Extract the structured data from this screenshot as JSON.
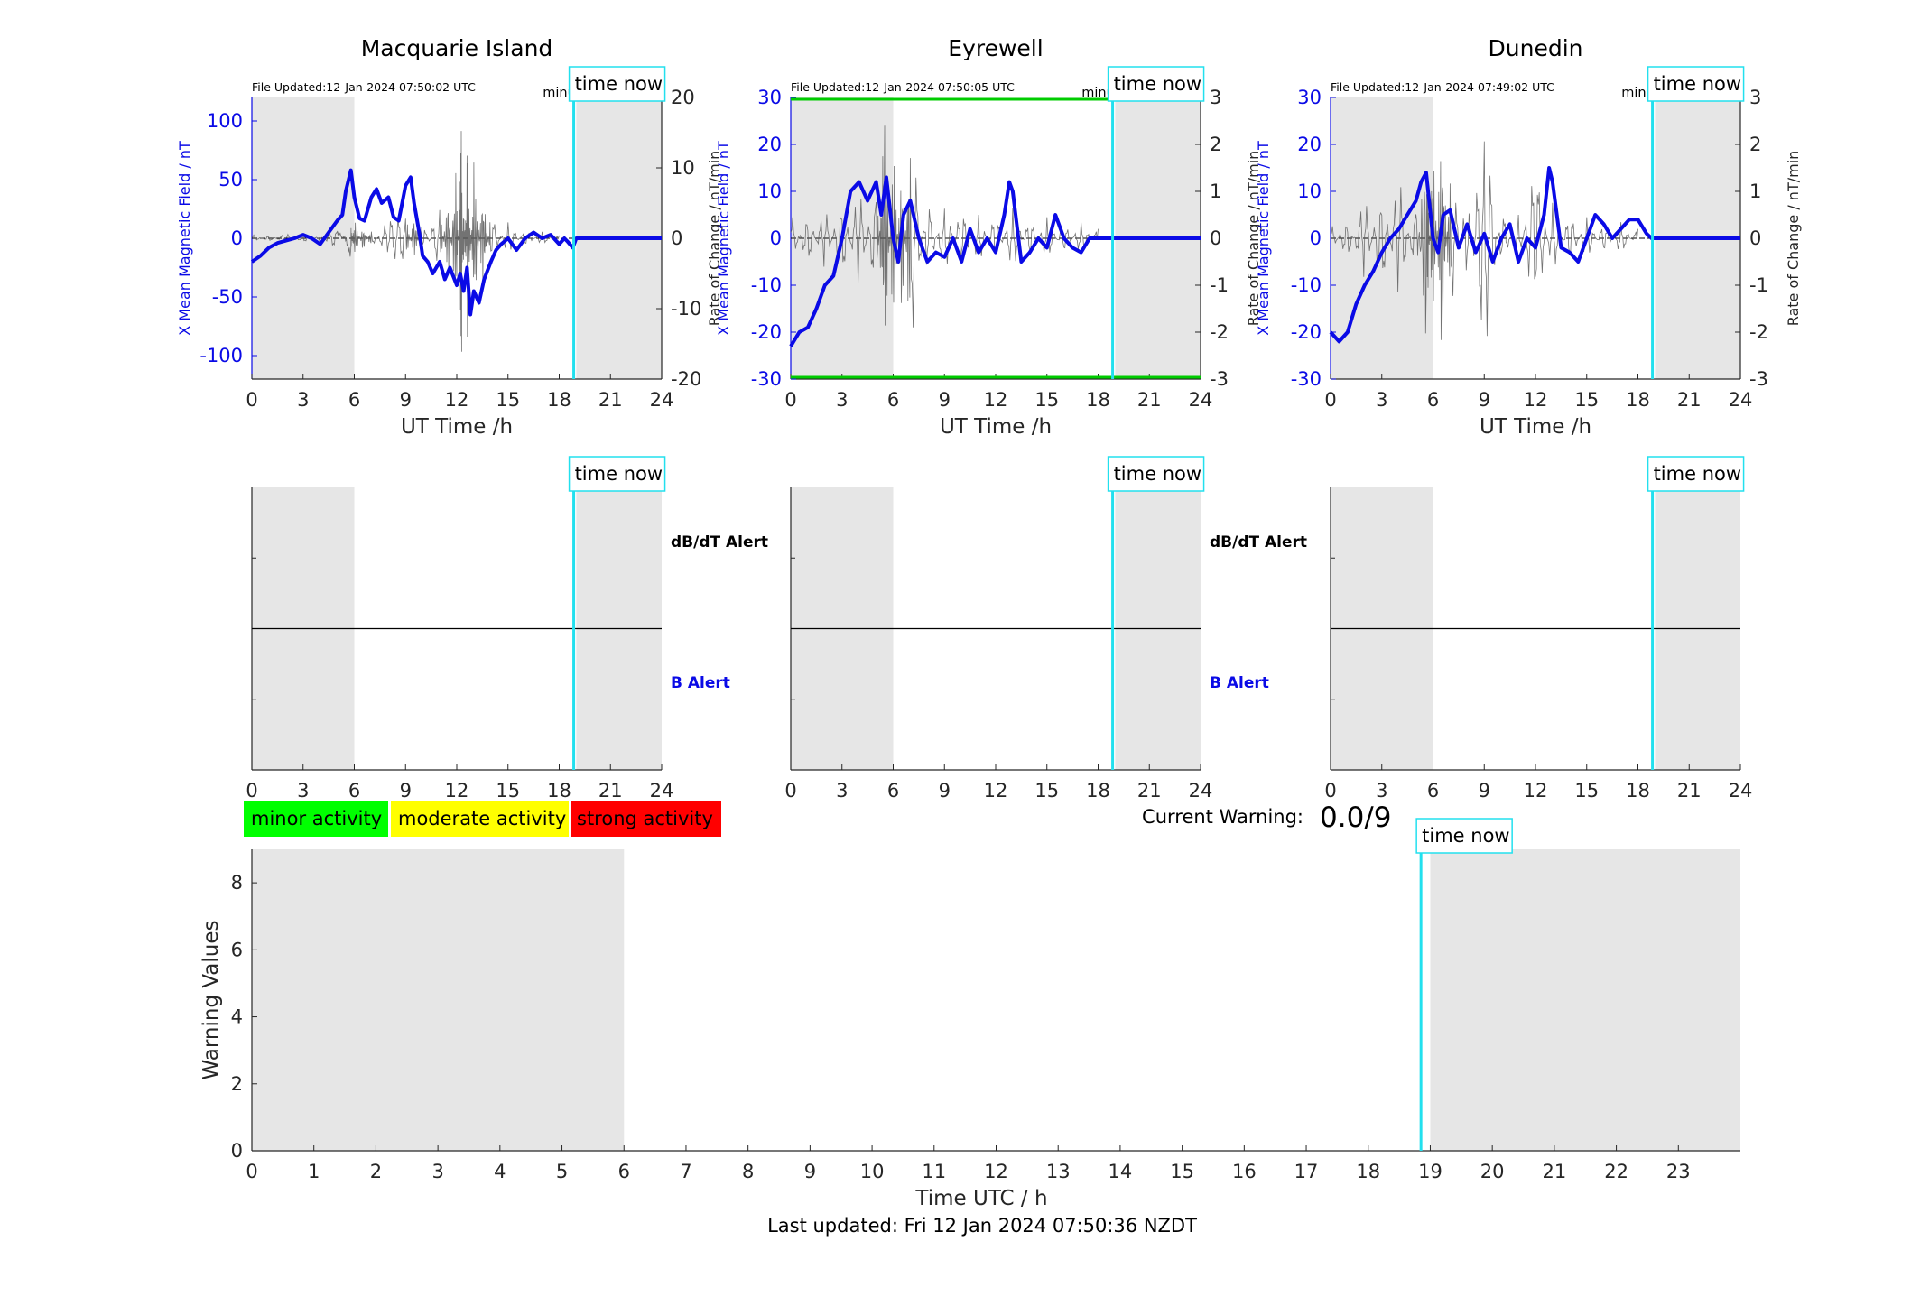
{
  "chart_data": [
    {
      "type": "line",
      "title": "Macquarie Island",
      "file_updated": "File Updated:12-Jan-2024 07:50:02 UTC",
      "resolution_note": "minute resolution",
      "time_now_label": "time now",
      "time_now_h": 18.85,
      "xlabel": "UT Time /h",
      "xlim": [
        0,
        24
      ],
      "xticks": [
        0,
        3,
        6,
        9,
        12,
        15,
        18,
        21,
        24
      ],
      "shaded_h": [
        [
          0,
          6
        ],
        [
          19,
          24
        ]
      ],
      "ylabel_left": "X Mean Magnetic Field / nT",
      "ylim_left": [
        -120,
        120
      ],
      "yticks_left": [
        -100,
        -50,
        0,
        50,
        100
      ],
      "ylabel_right": "Rate of Change / nT/min",
      "ylim_right": [
        -20,
        20
      ],
      "yticks_right": [
        -20,
        -10,
        0,
        10,
        20
      ],
      "series": [
        {
          "role": "x-mean-field",
          "color": "#0a0ae6",
          "x": [
            0,
            0.5,
            1,
            1.5,
            2,
            2.5,
            3,
            3.5,
            4,
            4.5,
            5,
            5.3,
            5.5,
            5.8,
            6,
            6.3,
            6.6,
            7,
            7.3,
            7.6,
            8,
            8.3,
            8.6,
            9,
            9.3,
            9.5,
            9.8,
            10,
            10.3,
            10.6,
            11,
            11.3,
            11.6,
            12,
            12.2,
            12.4,
            12.6,
            12.8,
            13,
            13.3,
            13.6,
            14,
            14.3,
            14.6,
            15,
            15.5,
            16,
            16.5,
            17,
            17.5,
            18,
            18.3,
            18.5,
            18.8,
            19,
            20,
            21,
            22,
            23,
            24
          ],
          "y": [
            -20,
            -15,
            -8,
            -4,
            -2,
            0,
            3,
            0,
            -5,
            5,
            15,
            20,
            40,
            58,
            35,
            17,
            15,
            35,
            42,
            30,
            35,
            18,
            15,
            45,
            52,
            30,
            5,
            -15,
            -20,
            -30,
            -20,
            -35,
            -25,
            -40,
            -30,
            -45,
            -25,
            -65,
            -45,
            -55,
            -35,
            -20,
            -10,
            -5,
            0,
            -10,
            0,
            5,
            0,
            3,
            -5,
            0,
            -3,
            -8,
            0,
            0,
            0,
            0,
            0,
            0
          ]
        },
        {
          "role": "rate-of-change",
          "color": "#5a5a5a",
          "x": [
            0,
            1,
            2,
            3,
            4,
            5,
            5.8,
            6,
            6.5,
            7,
            8,
            9,
            9.5,
            10,
            11,
            11.5,
            12,
            12.3,
            12.6,
            13,
            13.5,
            14,
            15,
            16,
            17,
            18
          ],
          "y": [
            0.5,
            -0.4,
            0.6,
            -0.5,
            0.3,
            -1.5,
            2.5,
            -2.5,
            1.5,
            -1.2,
            2.4,
            3.1,
            -2.5,
            2,
            -4,
            5,
            -10,
            16.5,
            -13.5,
            10,
            -6,
            3,
            -2,
            1,
            -0.8,
            0.4
          ]
        }
      ]
    },
    {
      "type": "line",
      "title": "Eyrewell",
      "file_updated": "File Updated:12-Jan-2024 07:50:05 UTC",
      "resolution_note": "minute resolution",
      "time_now_label": "time now",
      "time_now_h": 18.85,
      "xlabel": "UT Time /h",
      "xlim": [
        0,
        24
      ],
      "xticks": [
        0,
        3,
        6,
        9,
        12,
        15,
        18,
        21,
        24
      ],
      "shaded_h": [
        [
          0,
          6
        ],
        [
          19,
          24
        ]
      ],
      "ylabel_left": "X Mean Magnetic Field / nT",
      "ylim_left": [
        -30,
        30
      ],
      "yticks_left": [
        -30,
        -20,
        -10,
        0,
        10,
        20,
        30
      ],
      "ylabel_right": "Rate of Change / nT/min",
      "ylim_right": [
        -3,
        3
      ],
      "yticks_right": [
        -3,
        -2,
        -1,
        0,
        1,
        2,
        3
      ],
      "limit_lines_color": "#00cc00",
      "series": [
        {
          "role": "x-mean-field",
          "color": "#0a0ae6",
          "x": [
            0,
            0.5,
            1,
            1.5,
            2,
            2.5,
            3,
            3.5,
            4,
            4.5,
            5,
            5.3,
            5.6,
            6,
            6.3,
            6.6,
            7,
            7.5,
            8,
            8.5,
            9,
            9.5,
            10,
            10.5,
            11,
            11.5,
            12,
            12.5,
            12.8,
            13,
            13.5,
            14,
            14.5,
            15,
            15.5,
            16,
            16.5,
            17,
            17.5,
            18,
            18.5,
            19,
            20,
            21,
            22,
            23,
            24
          ],
          "y": [
            -23,
            -20,
            -19,
            -15,
            -10,
            -8,
            0,
            10,
            12,
            8,
            12,
            5,
            13,
            0,
            -5,
            5,
            8,
            0,
            -5,
            -3,
            -4,
            0,
            -5,
            2,
            -3,
            0,
            -3,
            5,
            12,
            10,
            -5,
            -3,
            0,
            -2,
            5,
            0,
            -2,
            -3,
            0,
            0,
            0,
            0,
            0,
            0,
            0,
            0,
            0
          ]
        },
        {
          "role": "rate-of-change",
          "color": "#5a5a5a",
          "x": [
            0,
            1,
            2,
            3,
            4,
            5,
            5.5,
            6,
            6.5,
            7,
            8,
            9,
            10,
            11,
            12,
            13,
            14,
            15,
            16,
            17,
            18
          ],
          "y": [
            0.5,
            -0.5,
            0.6,
            -0.8,
            1.0,
            -1.2,
            2.3,
            -1.8,
            1.5,
            -2.2,
            0.8,
            -0.7,
            0.6,
            -0.5,
            0.5,
            -0.6,
            0.4,
            -0.4,
            0.3,
            -0.3,
            0.2
          ]
        }
      ]
    },
    {
      "type": "line",
      "title": "Dunedin",
      "file_updated": "File Updated:12-Jan-2024 07:49:02 UTC",
      "resolution_note": "minute resolution",
      "time_now_label": "time now",
      "time_now_h": 18.85,
      "xlabel": "UT Time /h",
      "xlim": [
        0,
        24
      ],
      "xticks": [
        0,
        3,
        6,
        9,
        12,
        15,
        18,
        21,
        24
      ],
      "shaded_h": [
        [
          0,
          6
        ],
        [
          19,
          24
        ]
      ],
      "ylabel_left": "X Mean Magnetic Field / nT",
      "ylim_left": [
        -30,
        30
      ],
      "yticks_left": [
        -30,
        -20,
        -10,
        0,
        10,
        20,
        30
      ],
      "ylabel_right": "Rate of Change / nT/min",
      "ylim_right": [
        -3,
        3
      ],
      "yticks_right": [
        -3,
        -2,
        -1,
        0,
        1,
        2,
        3
      ],
      "series": [
        {
          "role": "x-mean-field",
          "color": "#0a0ae6",
          "x": [
            0,
            0.5,
            1,
            1.5,
            2,
            2.5,
            3,
            3.5,
            4,
            4.5,
            5,
            5.3,
            5.6,
            6,
            6.3,
            6.6,
            7,
            7.5,
            8,
            8.5,
            9,
            9.5,
            10,
            10.5,
            11,
            11.5,
            12,
            12.5,
            12.8,
            13,
            13.5,
            14,
            14.5,
            15,
            15.5,
            16,
            16.5,
            17,
            17.5,
            18,
            18.5,
            18.8,
            19,
            20,
            21,
            22,
            23,
            24
          ],
          "y": [
            -20,
            -22,
            -20,
            -14,
            -10,
            -7,
            -3,
            0,
            2,
            5,
            8,
            12,
            14,
            0,
            -3,
            5,
            6,
            -2,
            3,
            -3,
            1,
            -5,
            0,
            3,
            -5,
            0,
            -2,
            5,
            15,
            12,
            -2,
            -3,
            -5,
            0,
            5,
            3,
            0,
            2,
            4,
            4,
            1,
            0,
            0,
            0,
            0,
            0,
            0,
            0
          ]
        },
        {
          "role": "rate-of-change",
          "color": "#5a5a5a",
          "x": [
            0,
            1,
            2,
            3,
            4,
            5,
            5.6,
            6,
            6.5,
            7,
            8,
            9,
            10,
            11,
            12,
            13,
            14,
            15,
            16,
            17,
            18
          ],
          "y": [
            0.3,
            -0.4,
            0.8,
            -1.0,
            1.2,
            -0.8,
            2.0,
            -1.8,
            2.3,
            -1.5,
            0.9,
            -2.3,
            0.6,
            -0.5,
            1.5,
            -0.7,
            0.5,
            -0.4,
            0.3,
            -0.3,
            0.2
          ]
        }
      ]
    },
    {
      "type": "line",
      "title": "",
      "panel": "alerts-macquarie",
      "time_now_label": "time now",
      "time_now_h": 18.85,
      "xlim": [
        0,
        24
      ],
      "xticks": [
        0,
        3,
        6,
        9,
        12,
        15,
        18,
        21,
        24
      ],
      "shaded_h": [
        [
          0,
          6
        ],
        [
          19,
          24
        ]
      ],
      "band_labels": [
        {
          "label": "dB/dT Alert",
          "color": "#000000"
        },
        {
          "label": "B Alert",
          "color": "#0a0ae6"
        }
      ],
      "series": []
    },
    {
      "type": "line",
      "title": "",
      "panel": "alerts-eyrewell",
      "time_now_label": "time now",
      "time_now_h": 18.85,
      "xlim": [
        0,
        24
      ],
      "xticks": [
        0,
        3,
        6,
        9,
        12,
        15,
        18,
        21,
        24
      ],
      "shaded_h": [
        [
          0,
          6
        ],
        [
          19,
          24
        ]
      ],
      "band_labels": [
        {
          "label": "dB/dT Alert",
          "color": "#000000"
        },
        {
          "label": "B Alert",
          "color": "#0a0ae6"
        }
      ],
      "series": []
    },
    {
      "type": "line",
      "title": "",
      "panel": "alerts-dunedin",
      "time_now_label": "time now",
      "time_now_h": 18.85,
      "xlim": [
        0,
        24
      ],
      "xticks": [
        0,
        3,
        6,
        9,
        12,
        15,
        18,
        21,
        24
      ],
      "shaded_h": [
        [
          0,
          6
        ],
        [
          19,
          24
        ]
      ],
      "series": []
    },
    {
      "type": "bar",
      "title": "",
      "panel": "warning-values",
      "xlabel": "Time UTC / h",
      "ylabel": "Warning Values",
      "xlim": [
        0,
        24
      ],
      "xticks": [
        0,
        1,
        2,
        3,
        4,
        5,
        6,
        7,
        8,
        9,
        10,
        11,
        12,
        13,
        14,
        15,
        16,
        17,
        18,
        19,
        20,
        21,
        22,
        23
      ],
      "ylim": [
        0,
        9
      ],
      "yticks": [
        0,
        2,
        4,
        6,
        8
      ],
      "shaded_h": [
        [
          0,
          6
        ],
        [
          19,
          24
        ]
      ],
      "time_now_label": "time now",
      "time_now_h": 18.85,
      "series": []
    }
  ],
  "legend": [
    {
      "label": "minor activity",
      "color": "#00ff00"
    },
    {
      "label": "moderate activity",
      "color": "#ffff00"
    },
    {
      "label": "strong activity",
      "color": "#ff0000"
    }
  ],
  "current_warning": {
    "label": "Current Warning:",
    "value": "0.0/9"
  },
  "footer": {
    "last_updated": "Last updated: Fri 12 Jan 2024 07:50:36 NZDT"
  }
}
